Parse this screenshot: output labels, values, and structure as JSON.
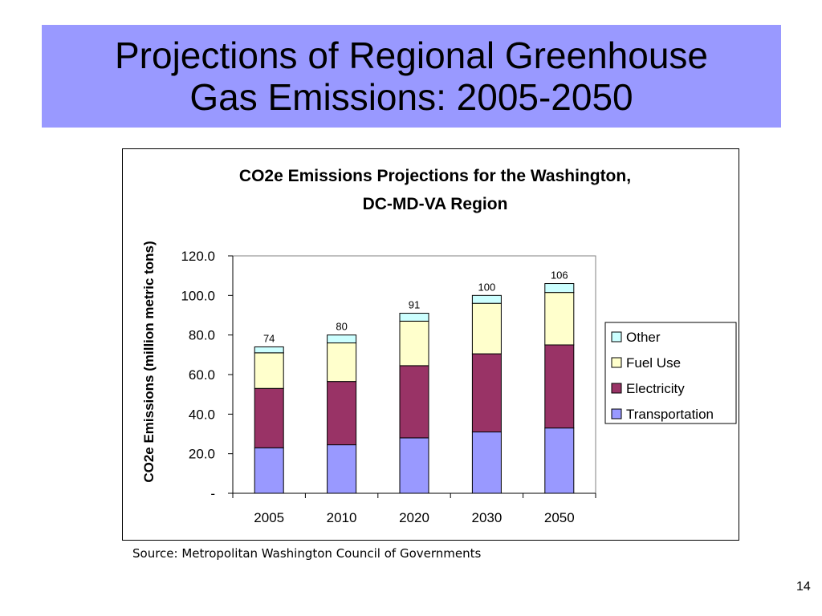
{
  "slide": {
    "title": "Projections of Regional Greenhouse\nGas Emissions:   2005-2050",
    "source": "Source:  Metropolitan Washington Council of Governments",
    "page_number": "14"
  },
  "colors": {
    "title_bg": "#9999ff",
    "transportation": "#9999ff",
    "electricity": "#993366",
    "fuel_use": "#ffffcc",
    "other": "#ccffff"
  },
  "chart_data": {
    "type": "bar",
    "stacked": true,
    "title_line1": "CO2e Emissions Projections for the Washington,",
    "title_line2": "DC-MD-VA Region",
    "ylabel": "CO2e Emissions (million metric tons)",
    "xlabel": "",
    "categories": [
      "2005",
      "2010",
      "2020",
      "2030",
      "2050"
    ],
    "ylim": [
      0,
      120
    ],
    "yticks": [
      "-",
      "20.0",
      "40.0",
      "60.0",
      "80.0",
      "100.0",
      "120.0"
    ],
    "series": [
      {
        "name": "Transportation",
        "values": [
          23,
          24.5,
          28,
          31,
          33
        ]
      },
      {
        "name": "Electricity",
        "values": [
          30,
          32,
          36.5,
          39.5,
          42
        ]
      },
      {
        "name": "Fuel Use",
        "values": [
          18,
          19.5,
          22.5,
          25.5,
          26.5
        ]
      },
      {
        "name": "Other",
        "values": [
          3,
          4,
          4,
          4,
          4.5
        ]
      }
    ],
    "totals": [
      "74",
      "80",
      "91",
      "100",
      "106"
    ],
    "legend": [
      "Other",
      "Fuel Use",
      "Electricity",
      "Transportation"
    ],
    "legend_position": "right",
    "grid": false
  }
}
